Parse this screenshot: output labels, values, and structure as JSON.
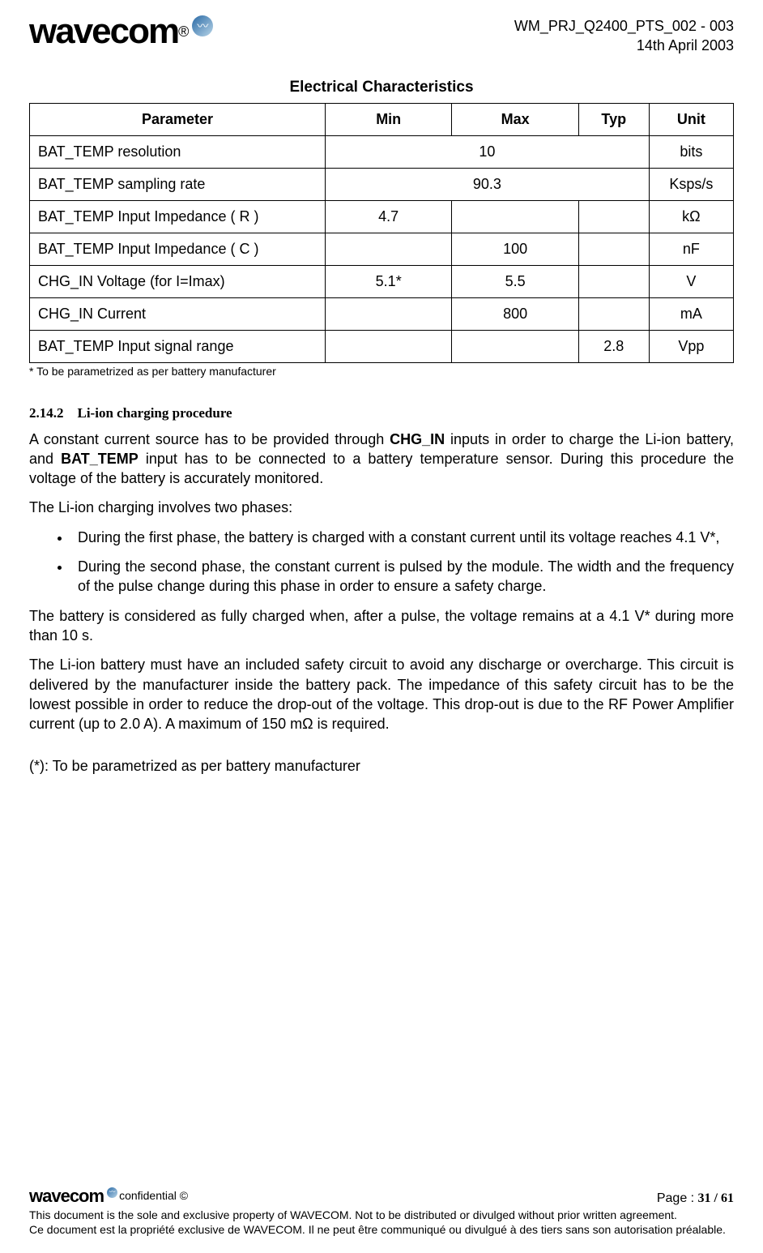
{
  "header": {
    "doc_ref": "WM_PRJ_Q2400_PTS_002  - 003",
    "doc_date": "14th April 2003",
    "logo_text": "wavecom"
  },
  "table_title": "Electrical Characteristics",
  "table": {
    "columns": [
      "Parameter",
      "Min",
      "Max",
      "Typ",
      "Unit"
    ],
    "col_widths": [
      "42%",
      "18%",
      "18%",
      "10%",
      "12%"
    ],
    "rows": [
      {
        "param": "BAT_TEMP resolution",
        "min": "10",
        "min_colspan": 3,
        "max": "",
        "typ": "",
        "unit": "bits"
      },
      {
        "param": "BAT_TEMP sampling rate",
        "min": "90.3",
        "min_colspan": 3,
        "max": "",
        "typ": "",
        "unit": "Ksps/s"
      },
      {
        "param": "BAT_TEMP Input Impedance ( R )",
        "min": "4.7",
        "min_colspan": 1,
        "max": "",
        "typ": "",
        "unit": "kΩ"
      },
      {
        "param": "BAT_TEMP Input Impedance ( C )",
        "min": "",
        "min_colspan": 1,
        "max": "100",
        "typ": "",
        "unit": "nF"
      },
      {
        "param": "CHG_IN Voltage (for I=Imax)",
        "min": "5.1*",
        "min_colspan": 1,
        "max": "5.5",
        "typ": "",
        "unit": "V"
      },
      {
        "param": "CHG_IN  Current",
        "min": "",
        "min_colspan": 1,
        "max": "800",
        "typ": "",
        "unit": "mA"
      },
      {
        "param": "BAT_TEMP Input signal range",
        "min": "",
        "min_colspan": 1,
        "max": "",
        "typ": "2.8",
        "unit": "Vpp"
      }
    ],
    "footnote": "* To be parametrized as per battery manufacturer"
  },
  "section": {
    "number": "2.14.2",
    "title": "Li-ion charging procedure",
    "p1_a": "A constant current source has to be provided through ",
    "p1_b": "CHG_IN",
    "p1_c": " inputs in order to charge the Li-ion battery, and ",
    "p1_d": "BAT_TEMP",
    "p1_e": " input has to be connected to a battery temperature sensor. During this procedure the voltage of the battery is accurately monitored.",
    "p2": "The Li-ion charging involves two phases:",
    "bullet1": "During the first phase, the battery is charged with a constant current until its voltage reaches 4.1 V*,",
    "bullet2": "During the second phase, the constant current is pulsed by the module. The width and the frequency of the pulse change during this phase in order to ensure a safety charge.",
    "p3": "The battery is considered as fully charged when, after a pulse, the voltage remains at a 4.1 V* during more than 10 s.",
    "p4": "The Li-ion battery must have an included safety circuit to avoid any discharge or overcharge. This circuit is delivered by the manufacturer inside the battery pack. The impedance of this safety circuit has to be the lowest possible in order to reduce the drop-out of the voltage. This drop-out is due to the RF Power Amplifier current (up to 2.0 A). A maximum of 150 mΩ is required.",
    "p5": "(*): To be parametrized as per battery manufacturer"
  },
  "footer": {
    "confidential": "confidential ©",
    "page_label": "Page : ",
    "page_number": "31 / 61",
    "line1": "This document is the sole and exclusive property of WAVECOM. Not to be distributed or divulged without prior written agreement.",
    "line2": "Ce document est la propriété exclusive de WAVECOM. Il ne peut être communiqué ou divulgué à des tiers sans son autorisation préalable."
  }
}
